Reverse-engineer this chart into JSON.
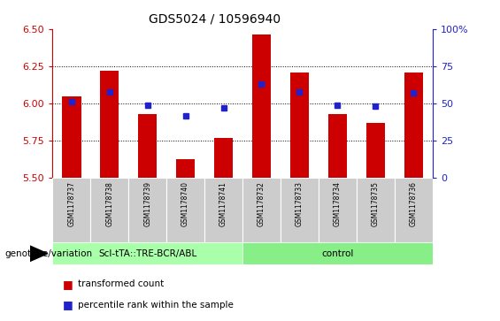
{
  "title": "GDS5024 / 10596940",
  "samples": [
    "GSM1178737",
    "GSM1178738",
    "GSM1178739",
    "GSM1178740",
    "GSM1178741",
    "GSM1178732",
    "GSM1178733",
    "GSM1178734",
    "GSM1178735",
    "GSM1178736"
  ],
  "red_values": [
    6.05,
    6.22,
    5.93,
    5.63,
    5.77,
    6.46,
    6.21,
    5.93,
    5.87,
    6.21
  ],
  "blue_values": [
    6.01,
    6.08,
    5.99,
    5.92,
    5.97,
    6.13,
    6.08,
    5.99,
    5.98,
    6.07
  ],
  "ylim_left": [
    5.5,
    6.5
  ],
  "ylim_right": [
    0,
    100
  ],
  "yticks_left": [
    5.5,
    5.75,
    6.0,
    6.25,
    6.5
  ],
  "yticks_right": [
    0,
    25,
    50,
    75,
    100
  ],
  "bar_color": "#cc0000",
  "marker_color": "#2222cc",
  "bar_bottom": 5.5,
  "group1_label": "Scl-tTA::TRE-BCR/ABL",
  "group2_label": "control",
  "group1_bg": "#aaffaa",
  "group2_bg": "#88ee88",
  "sample_bg": "#cccccc",
  "genotype_label": "genotype/variation",
  "legend_red": "transformed count",
  "legend_blue": "percentile rank within the sample",
  "group1_indices": [
    0,
    1,
    2,
    3,
    4
  ],
  "group2_indices": [
    5,
    6,
    7,
    8,
    9
  ],
  "grid_lines": [
    5.75,
    6.0,
    6.25
  ],
  "bar_width": 0.5
}
